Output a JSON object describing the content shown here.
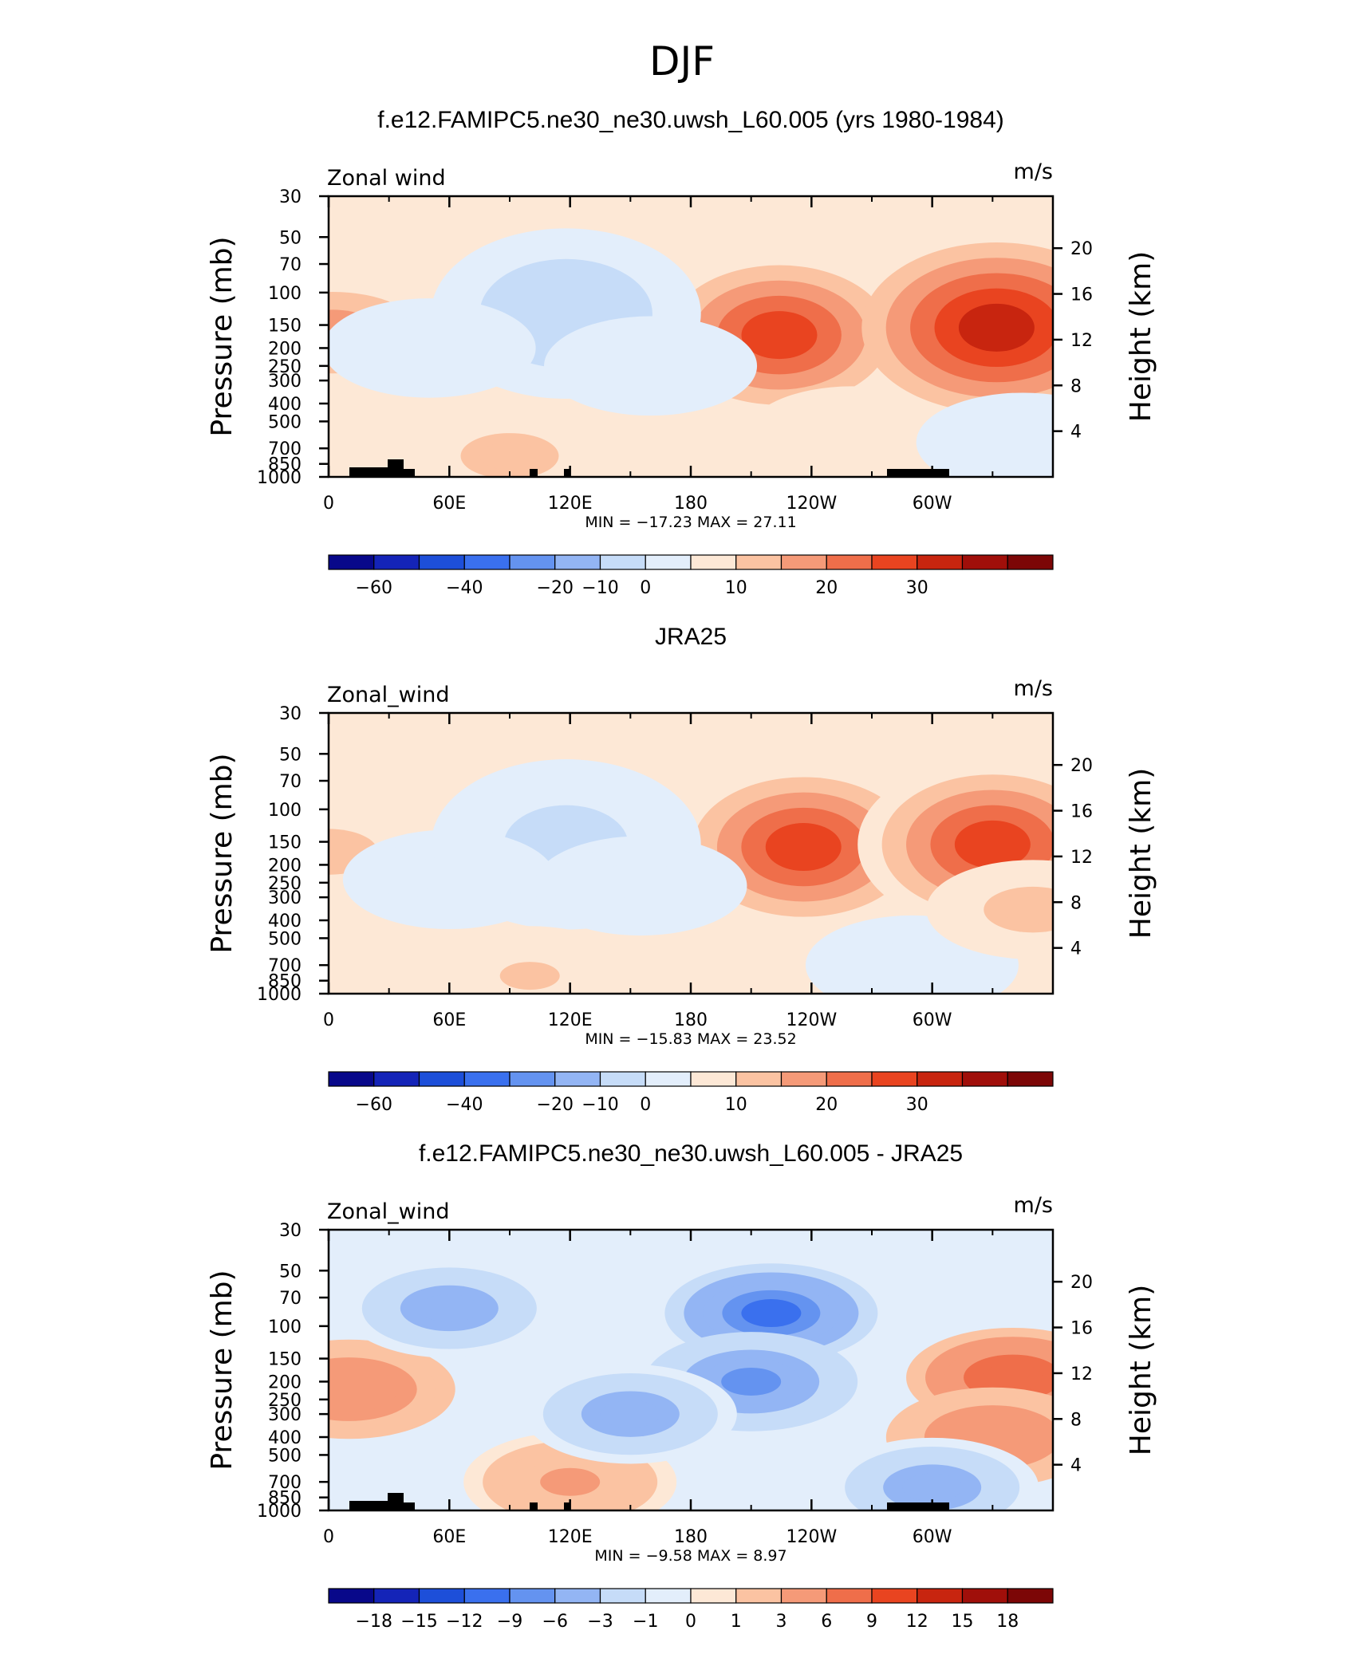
{
  "figure_title": "DJF",
  "colors": {
    "palette": [
      "#08088a",
      "#1424b8",
      "#1d4fd9",
      "#3a70ee",
      "#6493f0",
      "#93b5f4",
      "#c6dcf8",
      "#e3eefb",
      "#fde8d6",
      "#fbc3a2",
      "#f59a78",
      "#ef6e4a",
      "#e94420",
      "#c8250f",
      "#a00f0a",
      "#7c0606"
    ]
  },
  "chart_data": [
    {
      "type": "heatmap",
      "title": "f.e12.FAMIPC5.ne30_ne30.uwsh_L60.005 (yrs 1980-1984)",
      "field_label": "Zonal wind",
      "units": "m/s",
      "ylabel": "Pressure (mb)",
      "y2label": "Height (km)",
      "x_ticks": [
        "0",
        "60E",
        "120E",
        "180",
        "120W",
        "60W"
      ],
      "y_ticks": [
        "30",
        "50",
        "70",
        "100",
        "150",
        "200",
        "250",
        "300",
        "400",
        "500",
        "700",
        "850",
        "1000"
      ],
      "y2_ticks": [
        "20",
        "16",
        "12",
        "8",
        "4"
      ],
      "min_max": "MIN =  −17.23   MAX =   27.11",
      "colorbar_labels": [
        "−60",
        "−40",
        "−20",
        "−10",
        "0",
        "10",
        "20",
        "30"
      ],
      "features": [
        {
          "lon": 224,
          "p": 170,
          "value": 24
        },
        {
          "lon": 332,
          "p": 155,
          "value": 27.11
        },
        {
          "lon": 2,
          "p": 165,
          "value": 13
        },
        {
          "lon": 118,
          "p": 130,
          "value": -17.23
        },
        {
          "lon": 50,
          "p": 200,
          "value": -5
        },
        {
          "lon": 160,
          "p": 250,
          "value": -5
        },
        {
          "lon": 90,
          "p": 770,
          "value": 7
        },
        {
          "lon": 260,
          "p": 600,
          "value": 4
        },
        {
          "lon": 345,
          "p": 650,
          "value": -4
        }
      ]
    },
    {
      "type": "heatmap",
      "title": "JRA25",
      "field_label": "Zonal_wind",
      "units": "m/s",
      "ylabel": "Pressure (mb)",
      "y2label": "Height (km)",
      "x_ticks": [
        "0",
        "60E",
        "120E",
        "180",
        "120W",
        "60W"
      ],
      "y_ticks": [
        "30",
        "50",
        "70",
        "100",
        "150",
        "200",
        "250",
        "300",
        "400",
        "500",
        "700",
        "850",
        "1000"
      ],
      "y2_ticks": [
        "20",
        "16",
        "12",
        "8",
        "4"
      ],
      "min_max": "MIN =  −15.83   MAX =   23.52",
      "colorbar_labels": [
        "−60",
        "−40",
        "−20",
        "−10",
        "0",
        "10",
        "20",
        "30"
      ],
      "features": [
        {
          "lon": 236,
          "p": 160,
          "value": 23.52
        },
        {
          "lon": 330,
          "p": 155,
          "value": 20
        },
        {
          "lon": 0,
          "p": 170,
          "value": 8
        },
        {
          "lon": 118,
          "p": 155,
          "value": -15.83
        },
        {
          "lon": 60,
          "p": 240,
          "value": -4
        },
        {
          "lon": 155,
          "p": 260,
          "value": -4
        },
        {
          "lon": 100,
          "p": 800,
          "value": 6
        },
        {
          "lon": 290,
          "p": 700,
          "value": -4
        },
        {
          "lon": 350,
          "p": 350,
          "value": 7
        }
      ]
    },
    {
      "type": "heatmap",
      "title": "f.e12.FAMIPC5.ne30_ne30.uwsh_L60.005 - JRA25",
      "field_label": "Zonal_wind",
      "units": "m/s",
      "ylabel": "Pressure (mb)",
      "y2label": "Height (km)",
      "x_ticks": [
        "0",
        "60E",
        "120E",
        "180",
        "120W",
        "60W"
      ],
      "y_ticks": [
        "30",
        "50",
        "70",
        "100",
        "150",
        "200",
        "250",
        "300",
        "400",
        "500",
        "700",
        "850",
        "1000"
      ],
      "y2_ticks": [
        "20",
        "16",
        "12",
        "8",
        "4"
      ],
      "min_max": "MIN =   −9.58   MAX =      8.97",
      "colorbar_labels": [
        "−18",
        "−15",
        "−12",
        "−9",
        "−6",
        "−3",
        "−1",
        "0",
        "1",
        "3",
        "6",
        "9",
        "12",
        "15",
        "18"
      ],
      "features": [
        {
          "lon": 220,
          "p": 85,
          "value": -9.58
        },
        {
          "lon": 210,
          "p": 200,
          "value": -7
        },
        {
          "lon": 340,
          "p": 190,
          "value": 8.97
        },
        {
          "lon": 330,
          "p": 400,
          "value": 5
        },
        {
          "lon": 10,
          "p": 220,
          "value": 5
        },
        {
          "lon": 120,
          "p": 700,
          "value": 3
        },
        {
          "lon": 60,
          "p": 80,
          "value": -5
        },
        {
          "lon": 150,
          "p": 300,
          "value": -4
        },
        {
          "lon": 300,
          "p": 750,
          "value": -4
        }
      ]
    }
  ]
}
